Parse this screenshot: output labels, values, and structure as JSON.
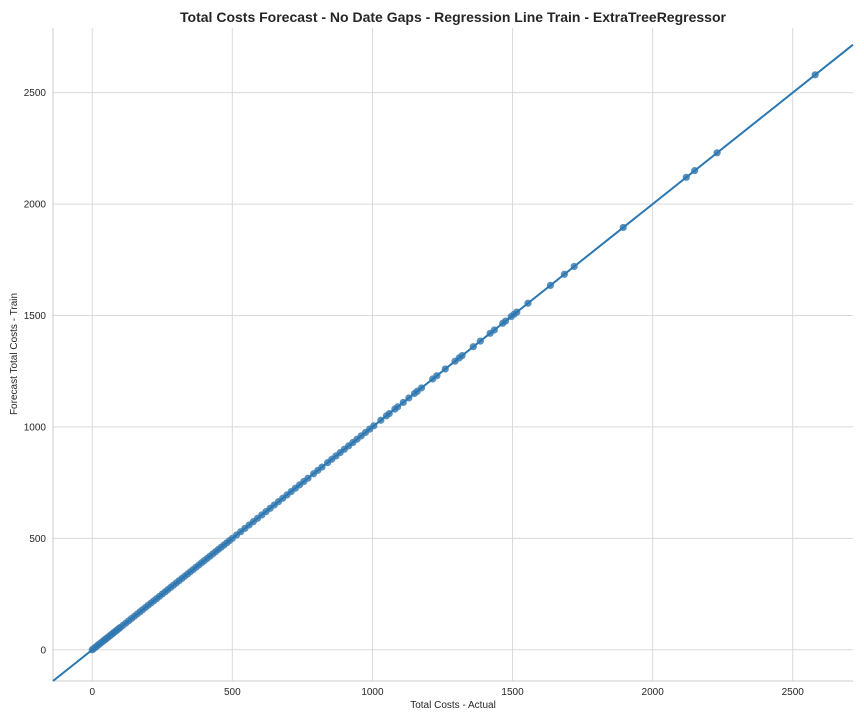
{
  "chart_data": {
    "type": "scatter",
    "title": "Total Costs Forecast - No Date Gaps - Regression Line Train - ExtraTreeRegressor",
    "xlabel": "Total Costs - Actual",
    "ylabel": "Forecast Total Costs - Train",
    "xlim": [
      -140,
      2715
    ],
    "ylim": [
      -140,
      2790
    ],
    "xticks": [
      0,
      500,
      1000,
      1500,
      2000,
      2500
    ],
    "yticks": [
      0,
      500,
      1000,
      1500,
      2000,
      2500
    ],
    "xtick_labels": [
      "0",
      "500",
      "1000",
      "1500",
      "2000",
      "2500"
    ],
    "ytick_labels": [
      "0",
      "500",
      "1000",
      "1500",
      "2000",
      "2500"
    ],
    "grid": true,
    "regression_line": {
      "slope": 1.0,
      "intercept": 0,
      "x_range": [
        -140,
        2715
      ]
    },
    "series": [
      {
        "color": "#3a7bb1",
        "points": [
          [
            0,
            0
          ],
          [
            5,
            5
          ],
          [
            10,
            10
          ],
          [
            15,
            15
          ],
          [
            20,
            20
          ],
          [
            25,
            25
          ],
          [
            30,
            30
          ],
          [
            35,
            35
          ],
          [
            40,
            40
          ],
          [
            45,
            45
          ],
          [
            50,
            50
          ],
          [
            55,
            55
          ],
          [
            60,
            60
          ],
          [
            65,
            65
          ],
          [
            70,
            70
          ],
          [
            75,
            75
          ],
          [
            80,
            80
          ],
          [
            85,
            85
          ],
          [
            90,
            90
          ],
          [
            95,
            95
          ],
          [
            100,
            100
          ],
          [
            110,
            110
          ],
          [
            120,
            120
          ],
          [
            130,
            130
          ],
          [
            140,
            140
          ],
          [
            150,
            150
          ],
          [
            160,
            160
          ],
          [
            170,
            170
          ],
          [
            180,
            180
          ],
          [
            190,
            190
          ],
          [
            200,
            200
          ],
          [
            210,
            210
          ],
          [
            220,
            220
          ],
          [
            230,
            230
          ],
          [
            240,
            240
          ],
          [
            250,
            250
          ],
          [
            260,
            260
          ],
          [
            270,
            270
          ],
          [
            280,
            280
          ],
          [
            290,
            290
          ],
          [
            300,
            300
          ],
          [
            310,
            310
          ],
          [
            320,
            320
          ],
          [
            330,
            330
          ],
          [
            340,
            340
          ],
          [
            350,
            350
          ],
          [
            360,
            360
          ],
          [
            370,
            370
          ],
          [
            380,
            380
          ],
          [
            390,
            390
          ],
          [
            400,
            400
          ],
          [
            410,
            410
          ],
          [
            420,
            420
          ],
          [
            430,
            430
          ],
          [
            440,
            440
          ],
          [
            450,
            450
          ],
          [
            460,
            460
          ],
          [
            470,
            470
          ],
          [
            480,
            480
          ],
          [
            490,
            490
          ],
          [
            500,
            500
          ],
          [
            515,
            515
          ],
          [
            530,
            530
          ],
          [
            545,
            545
          ],
          [
            560,
            560
          ],
          [
            575,
            575
          ],
          [
            590,
            590
          ],
          [
            605,
            605
          ],
          [
            620,
            620
          ],
          [
            635,
            635
          ],
          [
            650,
            650
          ],
          [
            665,
            665
          ],
          [
            680,
            680
          ],
          [
            695,
            695
          ],
          [
            710,
            710
          ],
          [
            725,
            725
          ],
          [
            740,
            740
          ],
          [
            755,
            755
          ],
          [
            770,
            770
          ],
          [
            790,
            790
          ],
          [
            805,
            805
          ],
          [
            820,
            820
          ],
          [
            840,
            840
          ],
          [
            855,
            855
          ],
          [
            870,
            870
          ],
          [
            885,
            885
          ],
          [
            900,
            900
          ],
          [
            915,
            915
          ],
          [
            930,
            930
          ],
          [
            945,
            945
          ],
          [
            960,
            960
          ],
          [
            975,
            975
          ],
          [
            990,
            990
          ],
          [
            1005,
            1005
          ],
          [
            1030,
            1030
          ],
          [
            1050,
            1050
          ],
          [
            1060,
            1060
          ],
          [
            1080,
            1080
          ],
          [
            1090,
            1090
          ],
          [
            1110,
            1110
          ],
          [
            1130,
            1130
          ],
          [
            1150,
            1150
          ],
          [
            1160,
            1160
          ],
          [
            1175,
            1175
          ],
          [
            1215,
            1215
          ],
          [
            1230,
            1230
          ],
          [
            1260,
            1260
          ],
          [
            1295,
            1295
          ],
          [
            1310,
            1310
          ],
          [
            1320,
            1320
          ],
          [
            1360,
            1360
          ],
          [
            1385,
            1385
          ],
          [
            1420,
            1420
          ],
          [
            1435,
            1435
          ],
          [
            1465,
            1465
          ],
          [
            1475,
            1475
          ],
          [
            1495,
            1495
          ],
          [
            1505,
            1505
          ],
          [
            1515,
            1515
          ],
          [
            1555,
            1555
          ],
          [
            1635,
            1635
          ],
          [
            1685,
            1685
          ],
          [
            1720,
            1720
          ],
          [
            1895,
            1895
          ],
          [
            2120,
            2120
          ],
          [
            2150,
            2150
          ],
          [
            2230,
            2230
          ],
          [
            2580,
            2580
          ]
        ]
      }
    ]
  }
}
